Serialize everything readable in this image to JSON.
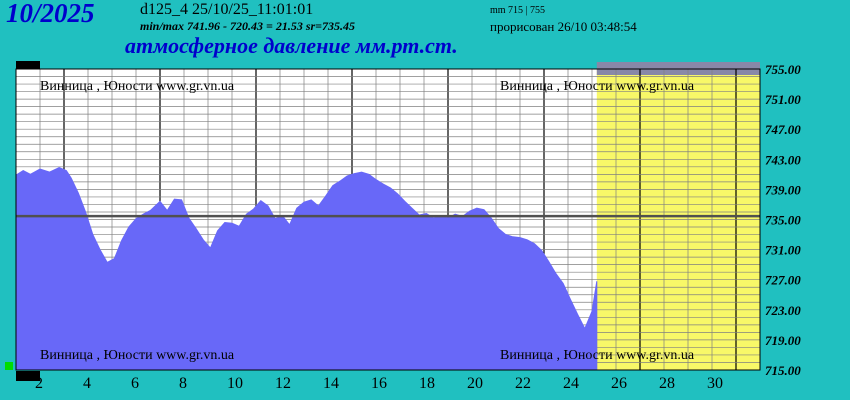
{
  "header": {
    "big_date": "10/2025",
    "code_line": "d125_4   25/10/25_11:01:01",
    "minmax_line": "min/max   741.96 - 720.43 = 21.53        sr=735.45",
    "range_line": "mm 715 | 755",
    "drawn_line": "прорисован 26/10 03:48:54",
    "title": "атмосферное давление мм.рт.ст."
  },
  "watermark": "Винница , Юности  www.gr.vn.ua",
  "colors": {
    "background": "#20c0c0",
    "fill": "#6868f8",
    "forecast_zone": "#f8f868",
    "forecast_band": "#8888a8",
    "avg_line": "#505050",
    "grid": "#808080",
    "marker_black": "#000000",
    "marker_green": "#00dd00"
  },
  "chart_data": {
    "type": "area",
    "title": "атмосферное давление мм.рт.ст.",
    "xlabel": "",
    "ylabel": "",
    "xlim": [
      1,
      32
    ],
    "ylim": [
      715,
      755
    ],
    "yticks": [
      "755.00",
      "751.00",
      "747.00",
      "743.00",
      "739.00",
      "735.00",
      "731.00",
      "727.00",
      "723.00",
      "719.00",
      "715.00"
    ],
    "xticks": [
      "2",
      "4",
      "6",
      "8",
      "10",
      "12",
      "14",
      "16",
      "18",
      "20",
      "22",
      "24",
      "26",
      "28",
      "30"
    ],
    "average": 735.45,
    "forecast_from_day": 25.2,
    "grid": true,
    "series": [
      {
        "x": [
          1,
          1.3,
          1.6,
          2,
          2.4,
          2.8,
          3.1,
          3.3,
          3.6,
          3.9,
          4.2,
          4.5,
          4.8,
          5.1,
          5.4,
          5.7,
          6,
          6.3,
          6.6,
          7,
          7.3,
          7.6,
          7.9,
          8.2,
          8.5,
          8.8,
          9.1,
          9.4,
          9.7,
          10,
          10.3,
          10.6,
          10.9,
          11.2,
          11.5,
          11.8,
          12.1,
          12.4,
          12.7,
          13,
          13.3,
          13.6,
          13.9,
          14.2,
          14.5,
          14.8,
          15.1,
          15.4,
          15.7,
          16,
          16.3,
          16.6,
          16.9,
          17.2,
          17.5,
          17.8,
          18.1,
          18.4,
          18.7,
          19,
          19.3,
          19.6,
          19.9,
          20.2,
          20.5,
          20.8,
          21.1,
          21.4,
          21.7,
          22,
          22.3,
          22.6,
          22.9,
          23.2,
          23.5,
          23.8,
          24.1,
          24.4,
          24.7,
          25,
          25.2
        ],
        "values": [
          740.9,
          741.5,
          741,
          741.7,
          741.3,
          741.9,
          741.5,
          740.5,
          738.5,
          736,
          733,
          731,
          729.3,
          729.8,
          732.2,
          734,
          735.1,
          735.7,
          736.2,
          737.4,
          736.2,
          737.7,
          737.6,
          735.2,
          733.8,
          732.3,
          731.2,
          733.5,
          734.6,
          734.5,
          734.1,
          735.7,
          736.4,
          737.5,
          736.8,
          735.1,
          735.5,
          734.3,
          736.5,
          737.3,
          737.6,
          736.8,
          738.1,
          739.5,
          740.1,
          740.8,
          741.1,
          741.3,
          741,
          740.3,
          739.7,
          739.2,
          738.4,
          737.4,
          736.5,
          735.6,
          735.8,
          735.2,
          735.5,
          735.2,
          735.7,
          735.4,
          736.1,
          736.5,
          736.3,
          735.2,
          733.8,
          733,
          732.7,
          732.6,
          732.3,
          731.8,
          730.9,
          729.4,
          727.8,
          726.5,
          724.4,
          722.4,
          720.5,
          722.8,
          726.8
        ]
      }
    ]
  }
}
